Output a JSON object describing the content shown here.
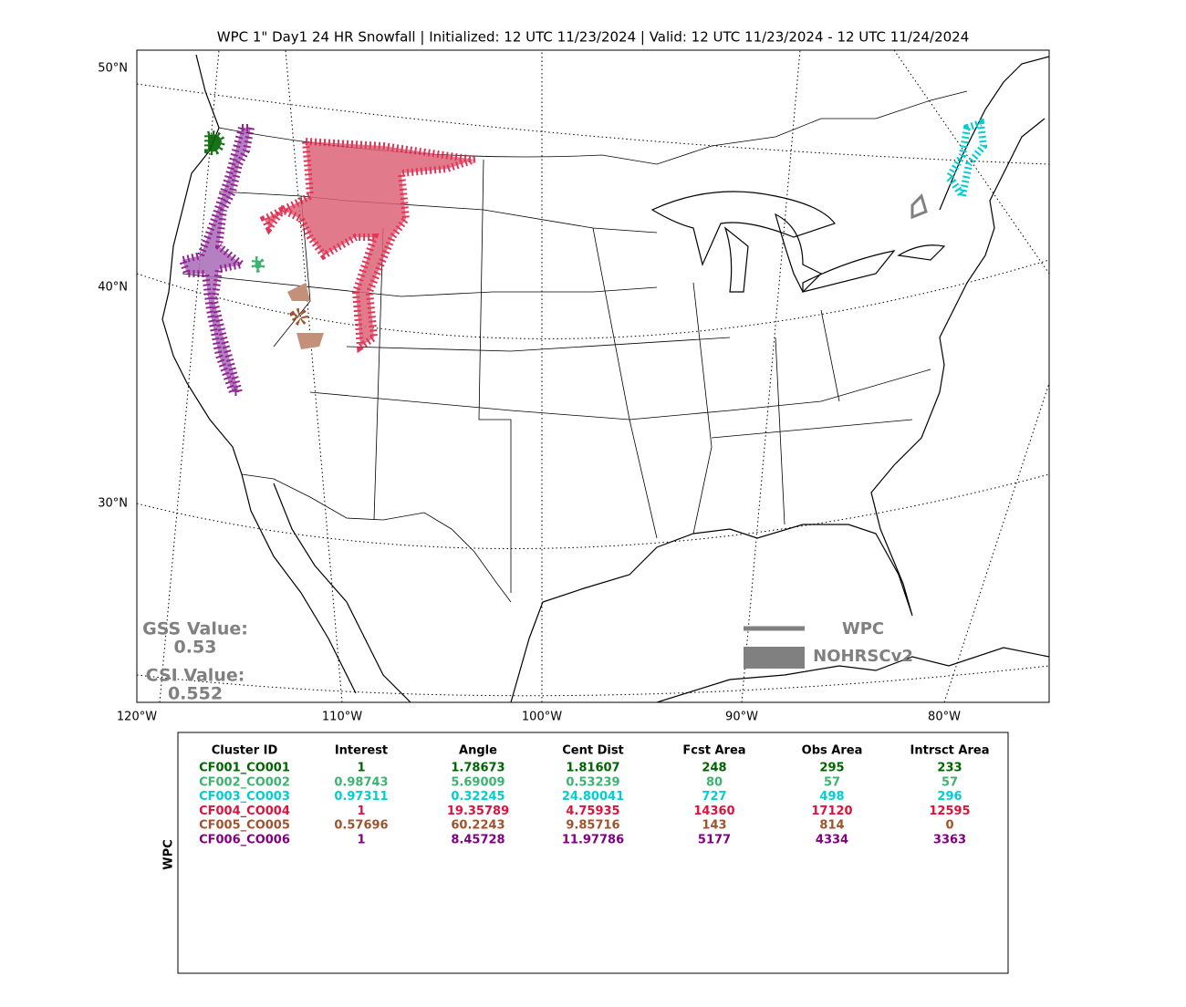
{
  "title": "WPC 1\" Day1 24 HR Snowfall | Initialized: 12 UTC 11/23/2024 | Valid: 12 UTC 11/23/2024 - 12 UTC 11/24/2024",
  "map": {
    "lat_labels": [
      "50°N",
      "40°N",
      "30°N"
    ],
    "lon_labels": [
      "120°W",
      "110°W",
      "100°W",
      "90°W",
      "80°W"
    ]
  },
  "scores": {
    "gss_label": "GSS Value:",
    "gss": "0.53",
    "csi_label": "CSI Value:",
    "csi": "0.552"
  },
  "legend": {
    "items": [
      "WPC",
      "NOHRSCv2"
    ],
    "color": "#808080"
  },
  "table": {
    "side_label": "WPC",
    "columns": [
      "Cluster ID",
      "Interest",
      "Angle",
      "Cent Dist",
      "Fcst Area",
      "Obs Area",
      "Intrsct Area"
    ],
    "row_colors": [
      "#006400",
      "#3cb371",
      "#00ced1",
      "#dc143c",
      "#a0522d",
      "#800080"
    ],
    "rows": [
      [
        "CF001_CO001",
        "1",
        "1.78673",
        "1.81607",
        "248",
        "295",
        "233"
      ],
      [
        "CF002_CO002",
        "0.98743",
        "5.69009",
        "0.53239",
        "80",
        "57",
        "57"
      ],
      [
        "CF003_CO003",
        "0.97311",
        "0.32245",
        "24.80041",
        "727",
        "498",
        "296"
      ],
      [
        "CF004_CO004",
        "1",
        "19.35789",
        "4.75935",
        "14360",
        "17120",
        "12595"
      ],
      [
        "CF005_CO005",
        "0.57696",
        "60.2243",
        "9.85716",
        "143",
        "814",
        "0"
      ],
      [
        "CF006_CO006",
        "1",
        "8.45728",
        "11.97786",
        "5177",
        "4334",
        "3363"
      ]
    ]
  }
}
